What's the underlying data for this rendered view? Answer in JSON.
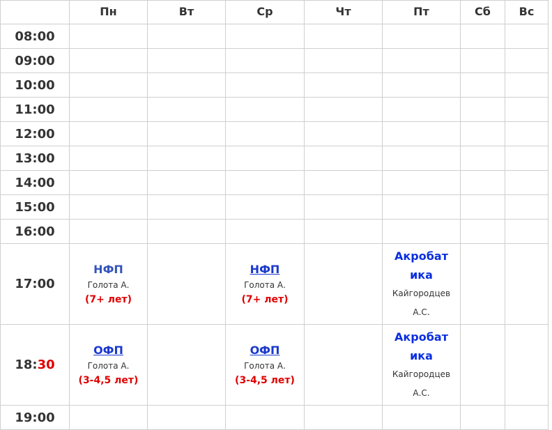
{
  "days": [
    "Пн",
    "Вт",
    "Ср",
    "Чт",
    "Пт",
    "Сб",
    "Вс"
  ],
  "times": [
    "08:00",
    "09:00",
    "10:00",
    "11:00",
    "12:00",
    "13:00",
    "14:00",
    "15:00",
    "16:00"
  ],
  "row_1700": {
    "time": "17:00",
    "mon": {
      "title": "НФП",
      "trainer": "Голота А.",
      "age": "(7+ лет)"
    },
    "wed": {
      "title": "НФП",
      "trainer": "Голота А.",
      "age": "(7+ лет)"
    },
    "fri": {
      "title": "Акробатика",
      "trainer": "Кайгородцев А.С."
    }
  },
  "row_1830": {
    "time_hour": "18:",
    "time_min": "30",
    "mon": {
      "title": "ОФП",
      "trainer": "Голота А.",
      "age": "(3-4,5 лет)"
    },
    "wed": {
      "title": "ОФП",
      "trainer": "Голота А.",
      "age": "(3-4,5 лет)"
    },
    "fri": {
      "title": "Акробатика",
      "trainer": "Кайгородцев А.С."
    }
  },
  "row_1900": {
    "time": "19:00"
  },
  "colors": {
    "accent_red": "#e00000",
    "link_blue": "#1a39cc",
    "title_blue": "#0b2fe0"
  }
}
